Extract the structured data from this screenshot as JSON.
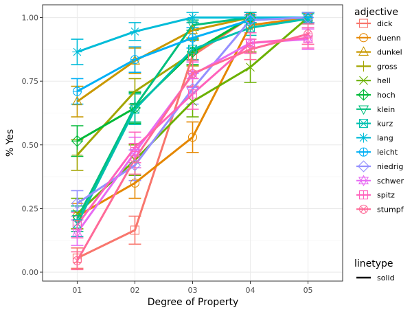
{
  "chart_data": {
    "type": "line",
    "xlabel": "Degree of Property",
    "ylabel": "% Yes",
    "categories": [
      "01",
      "02",
      "03",
      "04",
      "05"
    ],
    "ylim": [
      -0.035,
      1.05
    ],
    "yticks": [
      0.0,
      0.25,
      0.5,
      0.75,
      1.0
    ],
    "ytick_labels": [
      "0.00",
      "0.25",
      "0.50",
      "0.75",
      "1.00"
    ],
    "grid": true,
    "legend_position": "right",
    "legend_color_title": "adjective",
    "legend_linetype_title": "linetype",
    "linetype_entries": [
      "solid"
    ],
    "series": [
      {
        "name": "dick",
        "color": "#F8766D",
        "marker": "square",
        "values": [
          0.055,
          0.165,
          0.85,
          1.0,
          1.0
        ],
        "err": [
          0.04,
          0.055,
          0.06,
          0.02,
          0.02
        ]
      },
      {
        "name": "duenn",
        "color": "#E58700",
        "marker": "circle",
        "values": [
          0.22,
          0.35,
          0.53,
          0.97,
          1.0
        ],
        "err": [
          0.05,
          0.06,
          0.06,
          0.03,
          0.02
        ]
      },
      {
        "name": "dunkel",
        "color": "#C99800",
        "marker": "triangle",
        "values": [
          0.67,
          0.83,
          0.95,
          1.0,
          1.0
        ],
        "err": [
          0.06,
          0.05,
          0.03,
          0.02,
          0.02
        ]
      },
      {
        "name": "gross",
        "color": "#A3A500",
        "marker": "plus",
        "values": [
          0.46,
          0.71,
          0.86,
          1.0,
          1.0
        ],
        "err": [
          0.06,
          0.05,
          0.05,
          0.02,
          0.02
        ]
      },
      {
        "name": "hell",
        "color": "#6BB100",
        "marker": "cross",
        "values": [
          0.23,
          0.44,
          0.67,
          0.805,
          1.0
        ],
        "err": [
          0.06,
          0.06,
          0.06,
          0.06,
          0.02
        ]
      },
      {
        "name": "hoch",
        "color": "#00BA38",
        "marker": "diamond-plus",
        "values": [
          0.515,
          0.645,
          0.865,
          1.0,
          1.0
        ],
        "err": [
          0.06,
          0.06,
          0.05,
          0.02,
          0.02
        ]
      },
      {
        "name": "klein",
        "color": "#00BF7D",
        "marker": "triangle-down",
        "values": [
          0.21,
          0.65,
          0.97,
          1.0,
          1.0
        ],
        "err": [
          0.05,
          0.06,
          0.02,
          0.02,
          0.02
        ]
      },
      {
        "name": "kurz",
        "color": "#00C0AF",
        "marker": "square-x",
        "values": [
          0.19,
          0.64,
          0.875,
          0.96,
          0.995
        ],
        "err": [
          0.05,
          0.06,
          0.04,
          0.03,
          0.02
        ]
      },
      {
        "name": "lang",
        "color": "#00BCD8",
        "marker": "asterisk",
        "values": [
          0.865,
          0.945,
          1.0,
          1.0,
          1.0
        ],
        "err": [
          0.05,
          0.035,
          0.02,
          0.02,
          0.02
        ]
      },
      {
        "name": "leicht",
        "color": "#00B0F6",
        "marker": "circle-plus",
        "values": [
          0.71,
          0.835,
          0.92,
          0.99,
          1.0
        ],
        "err": [
          0.05,
          0.05,
          0.04,
          0.02,
          0.02
        ]
      },
      {
        "name": "niedrig",
        "color": "#9590FF",
        "marker": "diamond",
        "values": [
          0.27,
          0.42,
          0.72,
          0.99,
          1.0
        ],
        "err": [
          0.05,
          0.06,
          0.06,
          0.02,
          0.02
        ]
      },
      {
        "name": "schwer",
        "color": "#E76BF3",
        "marker": "star",
        "values": [
          0.155,
          0.47,
          0.775,
          0.9,
          0.915
        ],
        "err": [
          0.05,
          0.06,
          0.05,
          0.04,
          0.04
        ]
      },
      {
        "name": "spitz",
        "color": "#FF62BC",
        "marker": "square-plus",
        "values": [
          0.185,
          0.49,
          0.7,
          0.9,
          0.92
        ],
        "err": [
          0.05,
          0.06,
          0.06,
          0.04,
          0.04
        ]
      },
      {
        "name": "stumpf",
        "color": "#FF6A98",
        "marker": "circle-x",
        "values": [
          0.045,
          0.445,
          0.78,
          0.875,
          0.935
        ],
        "err": [
          0.035,
          0.06,
          0.05,
          0.04,
          0.04
        ]
      }
    ]
  }
}
